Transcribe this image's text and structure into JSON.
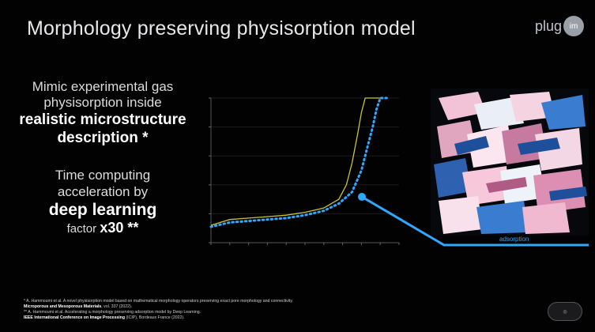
{
  "slide": {
    "title": "Morphology preserving physisorption model",
    "brand_logo_text": "plug"
  },
  "left_text": {
    "line1": "Mimic experimental gas",
    "line2": "physisorption inside",
    "line3": "realistic microstructure",
    "line4": "description *",
    "line5": "Time computing",
    "line6": "acceleration by",
    "line7": "deep learning",
    "line8_prefix": "factor ",
    "line8_bold": "x30 **"
  },
  "adsorption_label": "adsorption",
  "footnotes": {
    "fn1": "* A. Hammoumi et al. A novel physisorption model based on mathematical morphology operators preserving exact pore morphology and connectivity.",
    "fn1_journal": "Microporous and Mesoporous Materials",
    "fn1_tail": ", vol. 337 (2022).",
    "fn2": "** A. Hammoumi et al. Accelerating a morphology preserving adsorption model by Deep Learning.",
    "fn2_conf": "IEEE International Conference on Image Processing",
    "fn2_tail": " (ICIP), Bordeaux France (2022)."
  },
  "colors": {
    "accent_blue": "#2fa8ff",
    "curve_yellow": "#c9c23a",
    "background": "#000000"
  },
  "chart_data": {
    "type": "line",
    "title": "",
    "xlabel": "",
    "ylabel": "",
    "grid": true,
    "legend": "none",
    "xlim": [
      0,
      1
    ],
    "ylim": [
      0,
      1
    ],
    "series": [
      {
        "color": "#c9c23a",
        "style": "solid",
        "points": [
          [
            0.0,
            0.12
          ],
          [
            0.1,
            0.16
          ],
          [
            0.2,
            0.17
          ],
          [
            0.3,
            0.18
          ],
          [
            0.4,
            0.19
          ],
          [
            0.5,
            0.21
          ],
          [
            0.6,
            0.24
          ],
          [
            0.68,
            0.3
          ],
          [
            0.72,
            0.4
          ],
          [
            0.75,
            0.55
          ],
          [
            0.78,
            0.75
          ],
          [
            0.8,
            0.9
          ],
          [
            0.82,
            1.0
          ],
          [
            0.9,
            1.0
          ]
        ]
      },
      {
        "color": "#2fa8ff",
        "style": "dotted",
        "points": [
          [
            0.0,
            0.11
          ],
          [
            0.1,
            0.14
          ],
          [
            0.2,
            0.15
          ],
          [
            0.3,
            0.16
          ],
          [
            0.4,
            0.17
          ],
          [
            0.5,
            0.19
          ],
          [
            0.6,
            0.22
          ],
          [
            0.68,
            0.27
          ],
          [
            0.75,
            0.35
          ],
          [
            0.8,
            0.5
          ],
          [
            0.83,
            0.65
          ],
          [
            0.86,
            0.8
          ],
          [
            0.88,
            0.92
          ],
          [
            0.9,
            1.0
          ],
          [
            0.95,
            1.0
          ]
        ]
      }
    ]
  }
}
